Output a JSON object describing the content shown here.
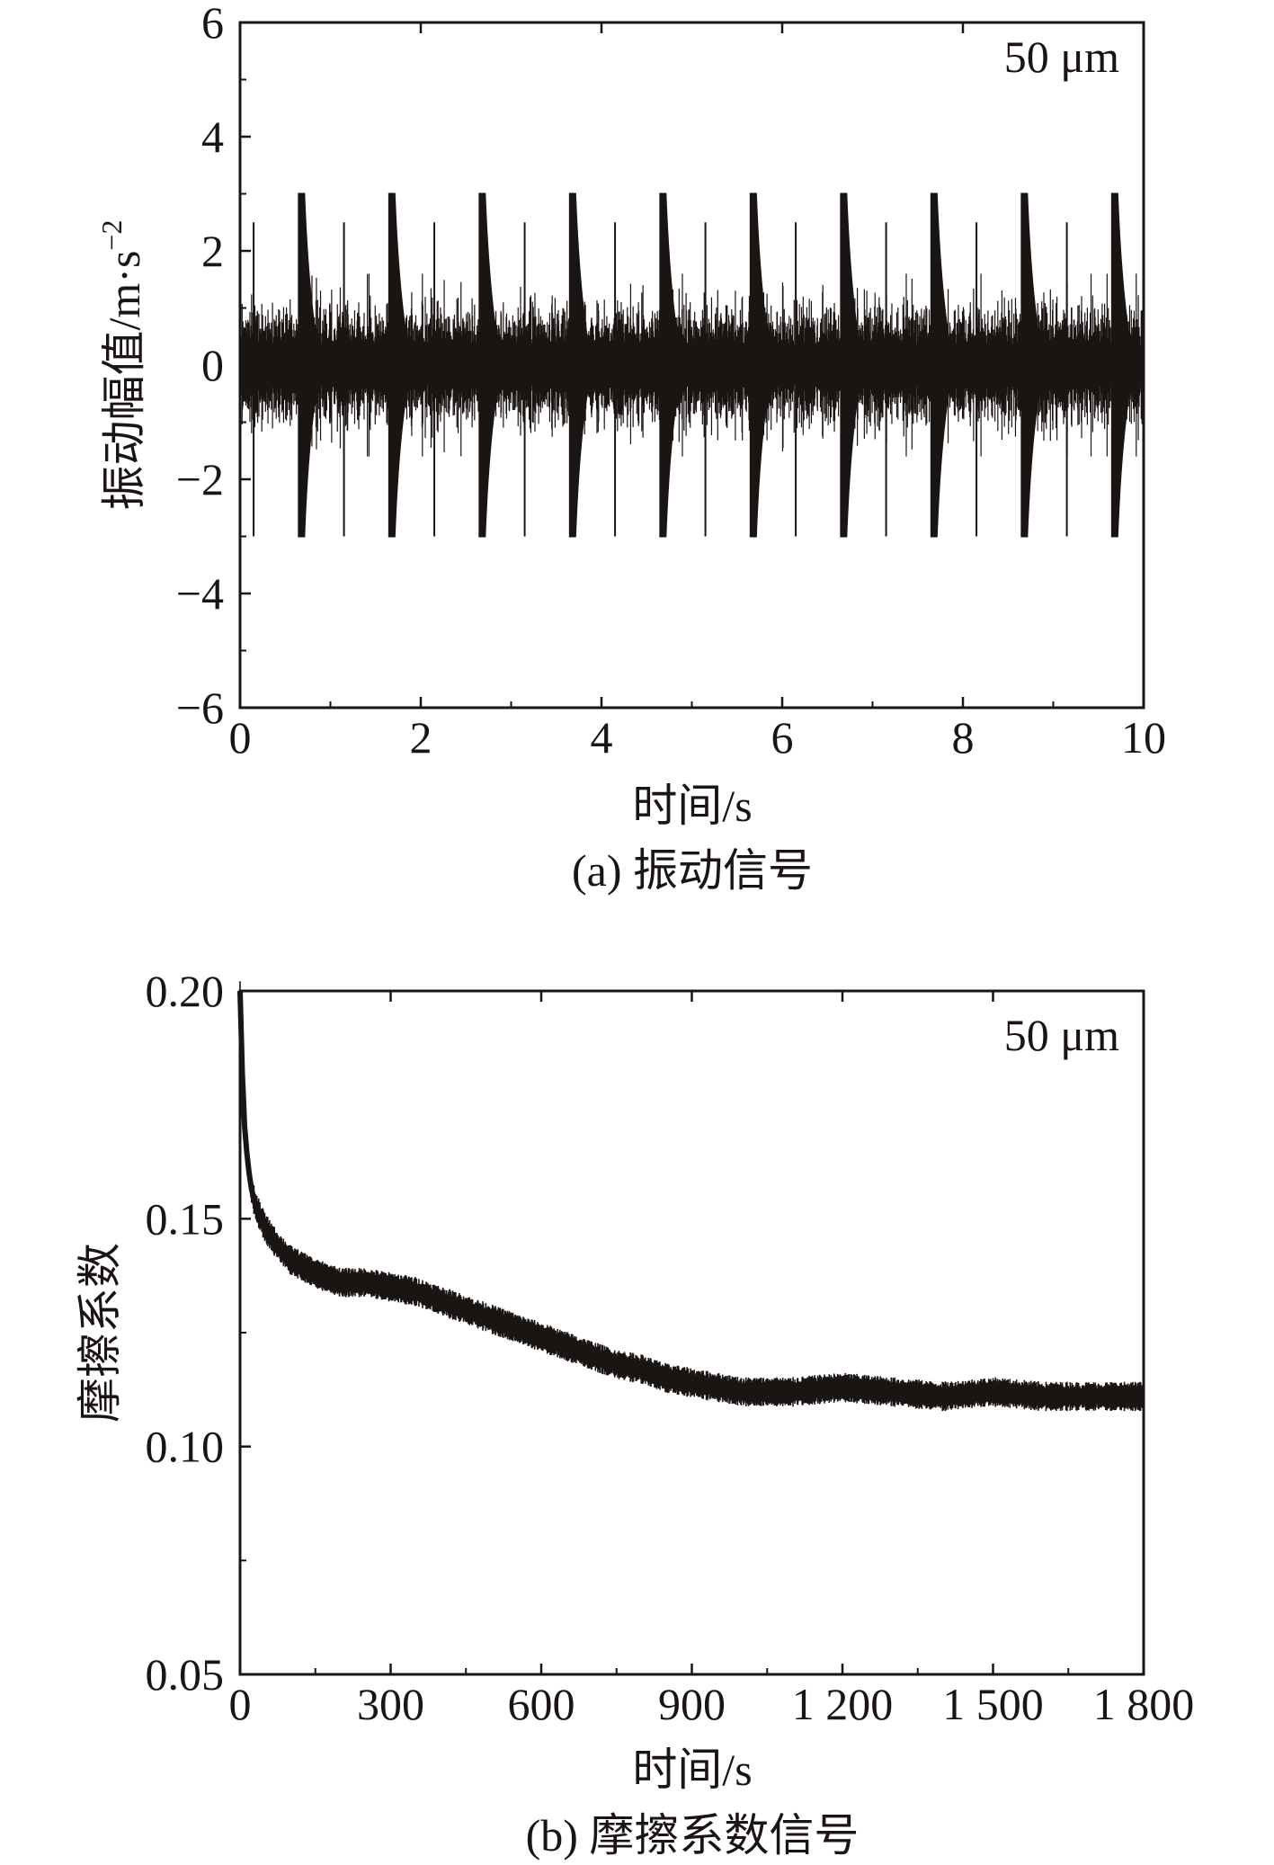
{
  "chart_data": [
    {
      "type": "line",
      "annotation": "50 μm",
      "xlabel": "时间/s",
      "ylabel": "振动幅值/m·s",
      "ylabel_sup": "−2",
      "caption": "(a) 振动信号",
      "xlim": [
        0,
        10
      ],
      "ylim": [
        -6,
        6
      ],
      "xticks": [
        0,
        2,
        4,
        6,
        8,
        10
      ],
      "xtick_labels": [
        "0",
        "2",
        "4",
        "6",
        "8",
        "10"
      ],
      "yticks": [
        -6,
        -4,
        -2,
        0,
        2,
        4,
        6
      ],
      "ytick_labels": [
        "−6",
        "−4",
        "−2",
        "0",
        "2",
        "4",
        "6"
      ],
      "grid": false,
      "series": [
        {
          "color": "#1a1412",
          "baseline_amplitude": 0.7,
          "major_impulse_times": [
            0.68,
            1.68,
            2.68,
            3.68,
            4.68,
            5.68,
            6.68,
            7.68,
            8.68,
            9.68
          ],
          "major_impulse_peak": 3.0,
          "major_impulse_trough": -3.0,
          "minor_impulse_times": [
            0.15,
            1.15,
            2.15,
            3.15,
            4.15,
            5.15,
            6.15,
            7.15,
            8.15,
            9.15
          ],
          "minor_impulse_peak": 2.5,
          "minor_impulse_trough": -3.0
        }
      ]
    },
    {
      "type": "line",
      "annotation": "50 μm",
      "xlabel": "时间/s",
      "ylabel": "摩擦系数",
      "caption": "(b) 摩擦系数信号",
      "xlim": [
        0,
        1800
      ],
      "ylim": [
        0.05,
        0.2
      ],
      "xticks": [
        0,
        300,
        600,
        900,
        1200,
        1500,
        1800
      ],
      "xtick_labels": [
        "0",
        "300",
        "600",
        "900",
        "1 200",
        "1 500",
        "1 800"
      ],
      "yticks": [
        0.05,
        0.1,
        0.15,
        0.2
      ],
      "ytick_labels": [
        "0.05",
        "0.10",
        "0.15",
        "0.20"
      ],
      "grid": false,
      "series": [
        {
          "color": "#1a1412",
          "x": [
            0,
            5,
            10,
            20,
            30,
            50,
            75,
            100,
            150,
            200,
            250,
            300,
            350,
            400,
            450,
            500,
            550,
            600,
            650,
            700,
            750,
            800,
            850,
            900,
            950,
            1000,
            1050,
            1100,
            1200,
            1300,
            1400,
            1500,
            1600,
            1700,
            1800
          ],
          "y": [
            0.2,
            0.18,
            0.168,
            0.158,
            0.153,
            0.148,
            0.144,
            0.141,
            0.138,
            0.136,
            0.136,
            0.135,
            0.134,
            0.132,
            0.13,
            0.128,
            0.126,
            0.124,
            0.122,
            0.12,
            0.118,
            0.117,
            0.115,
            0.114,
            0.113,
            0.112,
            0.112,
            0.112,
            0.113,
            0.112,
            0.111,
            0.112,
            0.111,
            0.111,
            0.111
          ],
          "band_half_width": 0.0025
        }
      ]
    }
  ]
}
